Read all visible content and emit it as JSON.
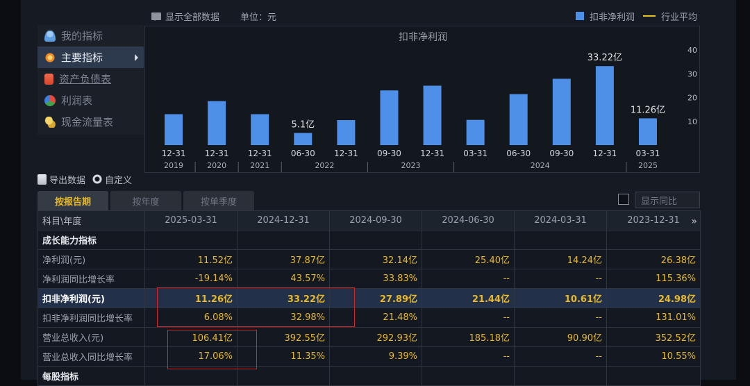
{
  "topbar": {
    "show_all": "显示全部数据",
    "unit": "单位：元"
  },
  "legend": {
    "bar_label": "扣非净利润",
    "line_label": "行业平均",
    "bar_color": "#4e8fe8",
    "line_color": "#e8c21e"
  },
  "sidebar": {
    "items": [
      {
        "label": "我的指标",
        "icon": "person-icon"
      },
      {
        "label": "主要指标",
        "icon": "gear-icon"
      },
      {
        "label": "资产负债表",
        "icon": "document-icon"
      },
      {
        "label": "利润表",
        "icon": "pie-chart-icon"
      },
      {
        "label": "现金流量表",
        "icon": "coins-icon"
      }
    ]
  },
  "tools": {
    "export": "导出数据",
    "custom": "自定义"
  },
  "tabs": [
    {
      "label": "按报告期"
    },
    {
      "label": "按年度"
    },
    {
      "label": "按单季度"
    }
  ],
  "toggle": {
    "label": "显示同比"
  },
  "chart_data": {
    "type": "bar",
    "title": "扣非净利润",
    "categories": [
      "12-31",
      "12-31",
      "12-31",
      "06-30",
      "12-31",
      "09-30",
      "12-31",
      "03-31",
      "06-30",
      "09-30",
      "12-31",
      "03-31"
    ],
    "years": [
      {
        "label": "2019",
        "span": 1
      },
      {
        "label": "2020",
        "span": 1
      },
      {
        "label": "2021",
        "span": 1
      },
      {
        "label": "2022",
        "span": 2
      },
      {
        "label": "2023",
        "span": 2
      },
      {
        "label": "2024",
        "span": 4
      },
      {
        "label": "2025",
        "span": 1
      }
    ],
    "values": [
      13,
      18.5,
      13,
      5.1,
      10.5,
      23,
      24.98,
      10.61,
      21.44,
      27.89,
      33.22,
      11.26
    ],
    "data_labels": [
      {
        "index": 3,
        "text": "5.1亿"
      },
      {
        "index": 10,
        "text": "33.22亿"
      },
      {
        "index": 11,
        "text": "11.26亿"
      }
    ],
    "y_ticks": [
      10,
      20,
      30,
      40
    ],
    "ylim": [
      0,
      40
    ]
  },
  "table": {
    "header": [
      "科目\\年度",
      "2025-03-31",
      "2024-12-31",
      "2024-09-30",
      "2024-06-30",
      "2024-03-31",
      "2023-12-31"
    ],
    "rows": [
      {
        "type": "section",
        "label": "成长能力指标",
        "cells": [
          "",
          "",
          "",
          "",
          "",
          ""
        ]
      },
      {
        "type": "data",
        "label": "净利润(元)",
        "cells": [
          "11.52亿",
          "37.87亿",
          "32.14亿",
          "25.40亿",
          "14.24亿",
          "26.38亿"
        ]
      },
      {
        "type": "data",
        "label": "净利润同比增长率",
        "cells": [
          "-19.14%",
          "43.57%",
          "33.83%",
          "--",
          "--",
          "115.36%"
        ]
      },
      {
        "type": "highlight",
        "label": "扣非净利润(元)",
        "cells": [
          "11.26亿",
          "33.22亿",
          "27.89亿",
          "21.44亿",
          "10.61亿",
          "24.98亿"
        ]
      },
      {
        "type": "data",
        "label": "扣非净利润同比增长率",
        "cells": [
          "6.08%",
          "32.98%",
          "21.48%",
          "--",
          "--",
          "131.01%"
        ]
      },
      {
        "type": "data",
        "label": "营业总收入(元)",
        "cells": [
          "106.41亿",
          "392.55亿",
          "292.93亿",
          "185.18亿",
          "90.90亿",
          "352.52亿"
        ]
      },
      {
        "type": "data",
        "label": "营业总收入同比增长率",
        "cells": [
          "17.06%",
          "11.35%",
          "9.39%",
          "--",
          "--",
          "10.55%"
        ]
      },
      {
        "type": "section",
        "label": "每股指标",
        "cells": [
          "",
          "",
          "",
          "",
          "",
          ""
        ]
      }
    ]
  }
}
